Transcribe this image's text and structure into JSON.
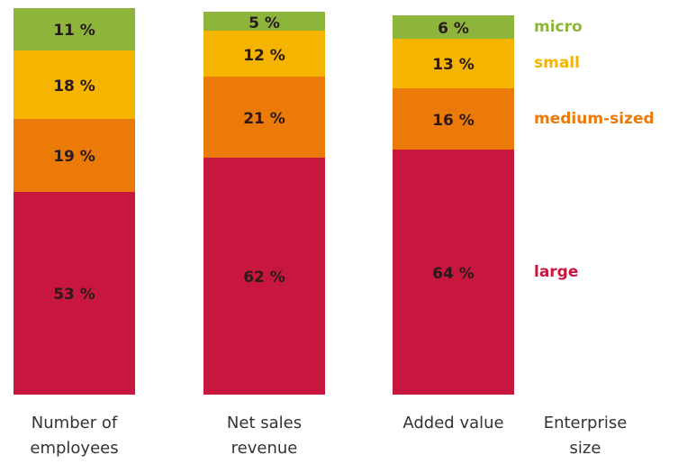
{
  "chart_data": {
    "type": "stacked-bar",
    "categories": [
      "Number of employees",
      "Net sales revenue",
      "Added value"
    ],
    "legend_title": "Enterprise size",
    "series": [
      {
        "name": "large",
        "color": "#c8173f",
        "values": [
          53,
          62,
          64
        ],
        "value_labels": [
          "53 %",
          "62 %",
          "64 %"
        ]
      },
      {
        "name": "medium-sized",
        "color": "#ec7a08",
        "values": [
          19,
          21,
          16
        ],
        "value_labels": [
          "19 %",
          "21 %",
          "16 %"
        ]
      },
      {
        "name": "small",
        "color": "#f5b400",
        "values": [
          18,
          12,
          13
        ],
        "value_labels": [
          "18 %",
          "12 %",
          "13 %"
        ]
      },
      {
        "name": "micro",
        "color": "#8db53c",
        "values": [
          11,
          5,
          6
        ],
        "value_labels": [
          "11 %",
          "5 %",
          "6 %"
        ]
      }
    ],
    "legend": "right"
  }
}
